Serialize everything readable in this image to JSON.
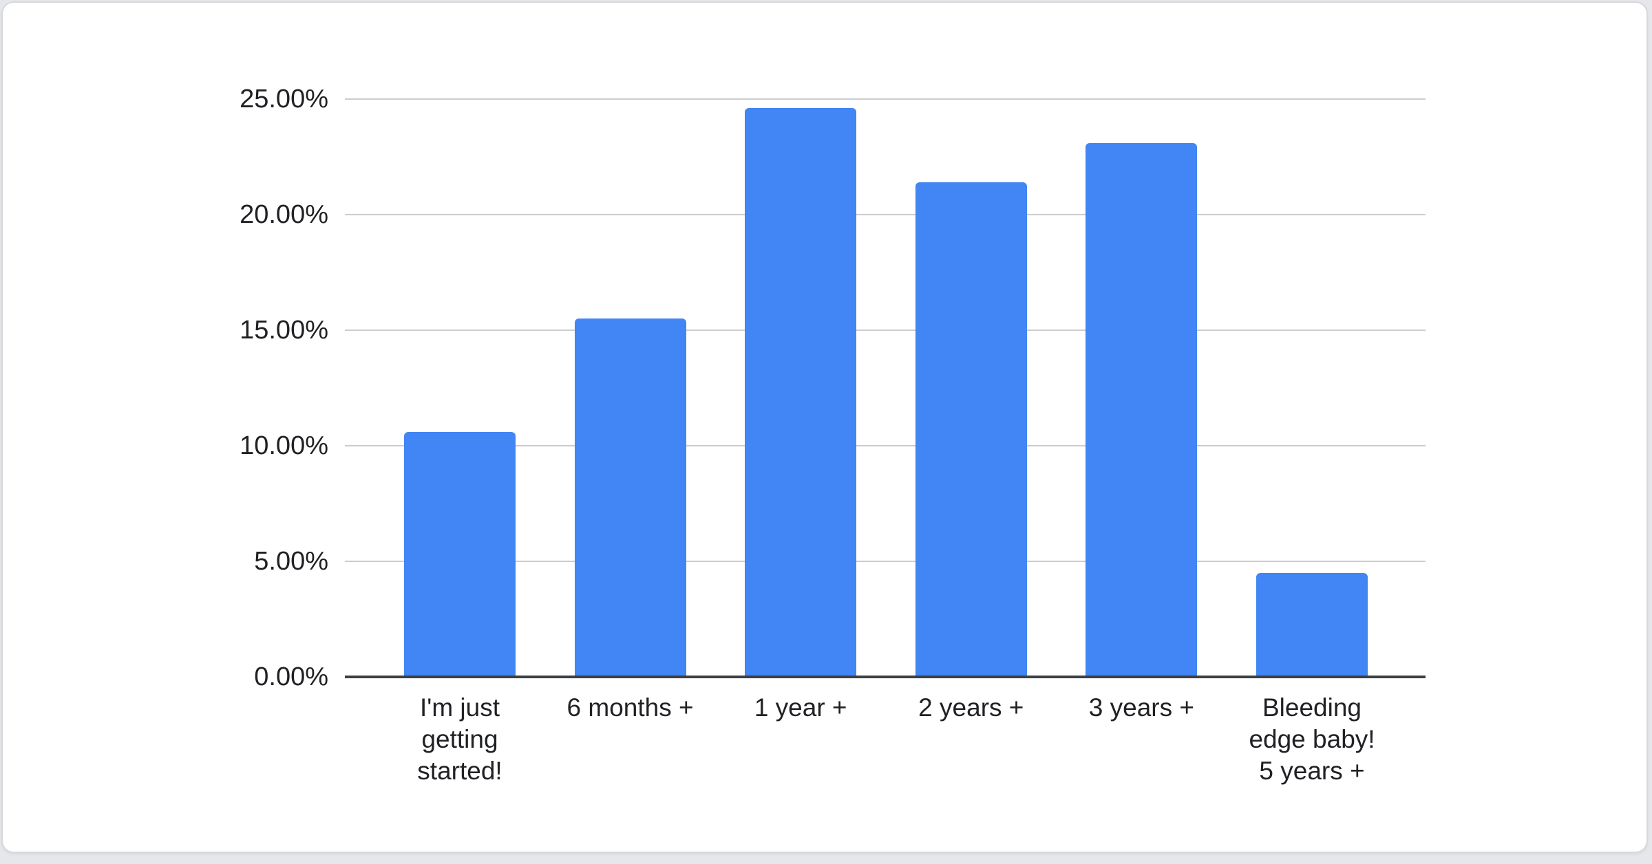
{
  "page": {
    "background_color": "#e5e7ea",
    "card_background": "#ffffff",
    "card_border_color": "#d6d8db"
  },
  "chart_data": {
    "type": "bar",
    "title": "",
    "xlabel": "",
    "ylabel": "",
    "categories": [
      "I'm just getting started!",
      "6 months +",
      "1 year +",
      "2 years +",
      "3 years +",
      "Bleeding edge baby! 5 years +"
    ],
    "category_lines": [
      [
        "I'm just",
        "getting",
        "started!"
      ],
      [
        "6 months +"
      ],
      [
        "1 year +"
      ],
      [
        "2 years +"
      ],
      [
        "3 years +"
      ],
      [
        "Bleeding",
        "edge baby!",
        "5 years +"
      ]
    ],
    "values": [
      10.6,
      15.5,
      24.6,
      21.4,
      23.1,
      4.5
    ],
    "value_unit": "%",
    "ylim": [
      0,
      25
    ],
    "y_tick_interval": 5,
    "y_ticks": [
      "0.00%",
      "5.00%",
      "10.00%",
      "15.00%",
      "20.00%",
      "25.00%"
    ],
    "y_tick_values": [
      0,
      5,
      10,
      15,
      20,
      25
    ],
    "grid": true,
    "legend": "none",
    "bar_color": "#4285f4",
    "gridline_color": "#cccccc",
    "baseline_color": "#3c4043",
    "text_color": "#202124"
  }
}
